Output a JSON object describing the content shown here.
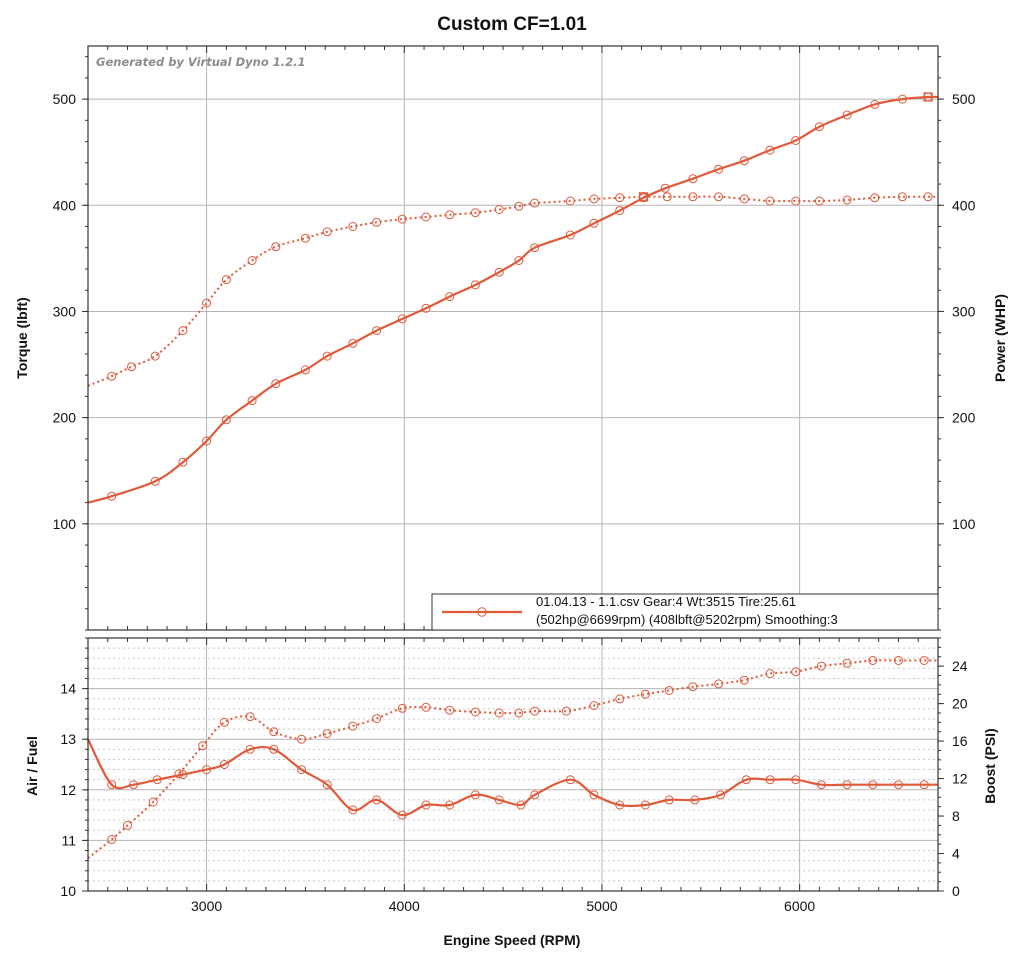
{
  "colors": {
    "series": "#e05a3a",
    "grid": "#b5b5b5",
    "frame": "#333333"
  },
  "chart_data": [
    {
      "type": "line",
      "title": "Custom CF=1.01",
      "watermark": "Generated by Virtual Dyno 1.2.1",
      "xlabel": "Engine Speed (RPM)",
      "ylabel": "Torque (lbft)",
      "y2label": "Power (WHP)",
      "xlim": [
        2400,
        6700
      ],
      "ylim": [
        0,
        550
      ],
      "y2lim": [
        0,
        550
      ],
      "xticks": [
        3000,
        4000,
        5000,
        6000
      ],
      "yticks": [
        100,
        200,
        300,
        400,
        500
      ],
      "y2ticks": [
        100,
        200,
        300,
        400,
        500
      ],
      "legend": {
        "position": "bottom-right",
        "line1": "01.04.13 - 1.1.csv Gear:4 Wt:3515 Tire:25.61",
        "line2": "(502hp@6699rpm) (408lbft@5202rpm) Smoothing:3"
      },
      "series": [
        {
          "name": "Power (WHP)",
          "style": "solid",
          "axis": "right",
          "x": [
            2400,
            2520,
            2740,
            2880,
            3000,
            3100,
            3230,
            3350,
            3500,
            3610,
            3740,
            3860,
            3990,
            4110,
            4230,
            4360,
            4480,
            4580,
            4660,
            4840,
            4960,
            5090,
            5210,
            5320,
            5460,
            5590,
            5720,
            5850,
            5980,
            6100,
            6240,
            6380,
            6520,
            6650,
            6700
          ],
          "y": [
            120,
            126,
            140,
            158,
            178,
            198,
            216,
            232,
            245,
            258,
            270,
            282,
            293,
            303,
            314,
            325,
            337,
            348,
            360,
            372,
            383,
            395,
            407,
            416,
            425,
            434,
            442,
            452,
            461,
            474,
            485,
            495,
            500,
            502,
            502
          ]
        },
        {
          "name": "Torque (lbft)",
          "style": "dotted",
          "axis": "left",
          "x": [
            2400,
            2520,
            2620,
            2740,
            2880,
            3000,
            3100,
            3230,
            3350,
            3500,
            3610,
            3740,
            3860,
            3990,
            4110,
            4230,
            4360,
            4480,
            4580,
            4660,
            4840,
            4960,
            5090,
            5210,
            5330,
            5460,
            5590,
            5720,
            5850,
            5980,
            6100,
            6240,
            6380,
            6520,
            6650,
            6700
          ],
          "y": [
            230,
            239,
            248,
            258,
            282,
            308,
            330,
            348,
            361,
            369,
            375,
            380,
            384,
            387,
            389,
            391,
            393,
            396,
            399,
            402,
            404,
            406,
            407,
            408,
            408,
            408,
            408,
            406,
            404,
            404,
            404,
            405,
            407,
            408,
            408,
            408
          ]
        }
      ]
    },
    {
      "type": "line",
      "xlabel": "Engine Speed (RPM)",
      "ylabel": "Air / Fuel",
      "y2label": "Boost (PSI)",
      "xlim": [
        2400,
        6700
      ],
      "ylim": [
        10,
        15
      ],
      "y2lim": [
        0,
        27
      ],
      "xticks": [
        3000,
        4000,
        5000,
        6000
      ],
      "yticks": [
        10,
        11,
        12,
        13,
        14
      ],
      "y2ticks": [
        0,
        4,
        8,
        12,
        16,
        20,
        24
      ],
      "series": [
        {
          "name": "Air / Fuel",
          "style": "solid",
          "axis": "left",
          "x": [
            2400,
            2520,
            2630,
            2750,
            2880,
            3000,
            3090,
            3220,
            3340,
            3480,
            3610,
            3740,
            3860,
            3990,
            4110,
            4230,
            4360,
            4480,
            4590,
            4660,
            4840,
            4960,
            5090,
            5220,
            5340,
            5470,
            5600,
            5730,
            5850,
            5980,
            6110,
            6240,
            6370,
            6500,
            6630,
            6700
          ],
          "y": [
            13.0,
            12.1,
            12.1,
            12.2,
            12.3,
            12.4,
            12.5,
            12.8,
            12.8,
            12.4,
            12.1,
            11.6,
            11.8,
            11.5,
            11.7,
            11.7,
            11.9,
            11.8,
            11.7,
            11.9,
            12.2,
            11.9,
            11.7,
            11.7,
            11.8,
            11.8,
            11.9,
            12.2,
            12.2,
            12.2,
            12.1,
            12.1,
            12.1,
            12.1,
            12.1,
            12.1
          ]
        },
        {
          "name": "Boost (PSI)",
          "style": "dotted",
          "axis": "right",
          "x": [
            2400,
            2520,
            2600,
            2730,
            2860,
            2980,
            3090,
            3220,
            3340,
            3480,
            3610,
            3740,
            3860,
            3990,
            4110,
            4230,
            4360,
            4480,
            4580,
            4660,
            4820,
            4960,
            5090,
            5220,
            5340,
            5460,
            5590,
            5720,
            5850,
            5980,
            6110,
            6240,
            6370,
            6500,
            6630,
            6700
          ],
          "y": [
            3.5,
            5.5,
            7.0,
            9.5,
            12.5,
            15.5,
            18.0,
            18.6,
            17.0,
            16.2,
            16.8,
            17.6,
            18.4,
            19.5,
            19.6,
            19.3,
            19.1,
            19.0,
            19.0,
            19.2,
            19.2,
            19.8,
            20.5,
            21.0,
            21.4,
            21.8,
            22.1,
            22.5,
            23.2,
            23.4,
            24.0,
            24.3,
            24.6,
            24.6,
            24.6,
            24.6
          ]
        }
      ]
    }
  ]
}
